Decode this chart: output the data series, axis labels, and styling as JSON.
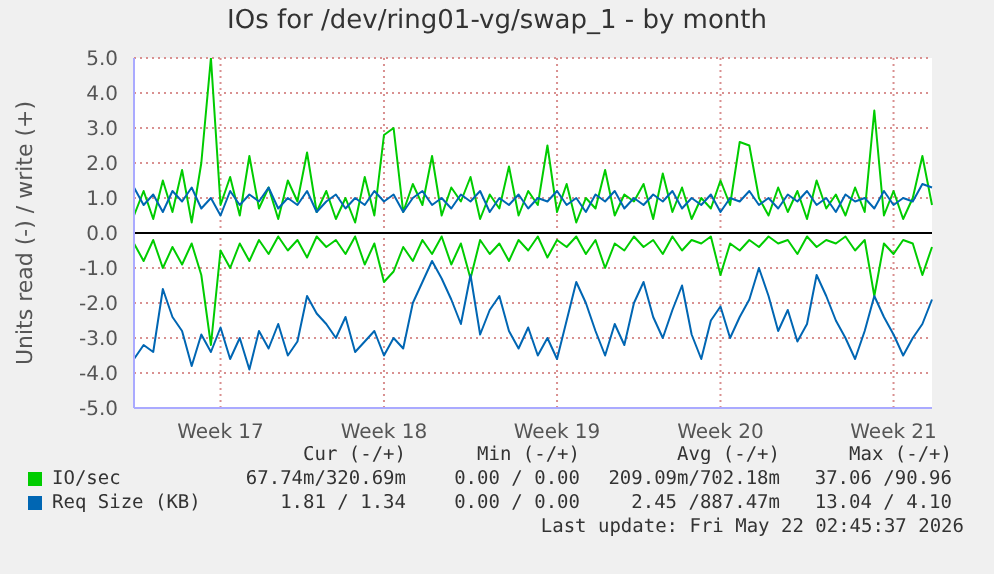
{
  "chart_data": {
    "type": "line",
    "title": "IOs for /dev/ring01-vg/swap_1 - by month",
    "ylabel": "Units read (-) / write (+)",
    "categories": [
      null,
      null,
      null,
      null,
      null,
      null,
      null,
      null,
      null,
      "Week 17",
      null,
      null,
      null,
      null,
      null,
      null,
      null,
      null,
      null,
      null,
      null,
      null,
      null,
      null,
      null,
      null,
      "Week 18",
      null,
      null,
      null,
      null,
      null,
      null,
      null,
      null,
      null,
      null,
      null,
      null,
      null,
      null,
      null,
      null,
      null,
      "Week 19",
      null,
      null,
      null,
      null,
      null,
      null,
      null,
      null,
      null,
      null,
      null,
      null,
      null,
      null,
      null,
      null,
      "Week 20",
      null,
      null,
      null,
      null,
      null,
      null,
      null,
      null,
      null,
      null,
      null,
      null,
      null,
      null,
      null,
      null,
      null,
      "Week 21",
      null,
      null,
      null,
      null
    ],
    "series": [
      {
        "color": "#00cc00",
        "values": [
          -0.3,
          -0.8,
          -0.2,
          -1.0,
          -0.4,
          -0.9,
          -0.3,
          -1.2,
          -3.2,
          -0.5,
          -1.0,
          -0.3,
          -0.8,
          -0.2,
          -0.6,
          -0.1,
          -0.5,
          -0.2,
          -0.7,
          -0.1,
          -0.4,
          -0.2,
          -0.6,
          -0.1,
          -0.9,
          -0.3,
          -1.4,
          -1.1,
          -0.4,
          -0.8,
          -0.2,
          -0.6,
          -0.1,
          -0.9,
          -0.3,
          -1.3,
          -0.2,
          -0.6,
          -0.3,
          -0.8,
          -0.2,
          -0.5,
          -0.1,
          -0.7,
          -0.2,
          -0.4,
          -0.1,
          -0.6,
          -0.2,
          -1.0,
          -0.3,
          -0.5,
          -0.1,
          -0.4,
          -0.2,
          -0.6,
          -0.1,
          -0.5,
          -0.2,
          -0.3,
          -0.1,
          -1.2,
          -0.3,
          -0.5,
          -0.2,
          -0.4,
          -0.1,
          -0.3,
          -0.2,
          -0.6,
          -0.1,
          -0.4,
          -0.2,
          -0.3,
          -0.1,
          -0.5,
          -0.2,
          -1.8,
          -0.3,
          -0.6,
          -0.2,
          -0.3,
          -1.2,
          -0.4
        ]
      },
      {
        "name": "IO/sec",
        "color": "#00cc00",
        "values": [
          0.5,
          1.2,
          0.4,
          1.5,
          0.6,
          1.8,
          0.3,
          2.0,
          5.0,
          0.8,
          1.6,
          0.5,
          2.2,
          0.7,
          1.3,
          0.4,
          1.5,
          0.9,
          2.3,
          0.6,
          1.2,
          0.4,
          1.0,
          0.3,
          1.6,
          0.5,
          2.8,
          3.0,
          0.6,
          1.4,
          0.8,
          2.2,
          0.5,
          1.3,
          0.9,
          1.6,
          0.4,
          1.1,
          0.7,
          1.9,
          0.5,
          1.2,
          0.8,
          2.5,
          0.6,
          1.4,
          0.3,
          1.0,
          0.7,
          1.8,
          0.5,
          1.1,
          0.9,
          1.4,
          0.4,
          1.7,
          0.6,
          1.3,
          0.4,
          1.0,
          0.7,
          1.5,
          0.8,
          2.6,
          2.5,
          1.0,
          0.5,
          1.3,
          0.6,
          1.2,
          0.4,
          1.5,
          0.7,
          1.1,
          0.5,
          1.3,
          0.6,
          3.5,
          0.5,
          1.2,
          0.4,
          1.0,
          2.2,
          0.8
        ]
      },
      {
        "color": "#0066b3",
        "values": [
          -3.6,
          -3.2,
          -3.4,
          -1.6,
          -2.4,
          -2.8,
          -3.8,
          -2.9,
          -3.4,
          -2.7,
          -3.6,
          -3.0,
          -3.9,
          -2.8,
          -3.3,
          -2.6,
          -3.5,
          -3.1,
          -1.8,
          -2.3,
          -2.6,
          -3.0,
          -2.4,
          -3.4,
          -3.1,
          -2.8,
          -3.5,
          -3.0,
          -3.3,
          -2.0,
          -1.4,
          -0.8,
          -1.3,
          -1.9,
          -2.6,
          -1.2,
          -2.9,
          -2.2,
          -1.8,
          -2.8,
          -3.3,
          -2.7,
          -3.5,
          -3.0,
          -3.6,
          -2.5,
          -1.4,
          -2.0,
          -2.8,
          -3.5,
          -2.6,
          -3.2,
          -2.0,
          -1.4,
          -2.4,
          -3.0,
          -2.2,
          -1.5,
          -2.9,
          -3.6,
          -2.5,
          -2.1,
          -3.0,
          -2.4,
          -1.9,
          -1.0,
          -1.8,
          -2.8,
          -2.2,
          -3.1,
          -2.6,
          -1.2,
          -1.8,
          -2.5,
          -3.0,
          -3.6,
          -2.8,
          -1.8,
          -2.4,
          -2.9,
          -3.5,
          -3.0,
          -2.6,
          -1.9
        ]
      },
      {
        "name": "Req Size (KB)",
        "color": "#0066b3",
        "values": [
          1.3,
          0.8,
          1.1,
          0.6,
          1.2,
          0.9,
          1.3,
          0.7,
          1.0,
          0.5,
          1.2,
          0.8,
          1.1,
          0.9,
          1.3,
          0.7,
          1.0,
          0.8,
          1.2,
          0.6,
          0.9,
          1.1,
          0.7,
          1.0,
          0.8,
          1.2,
          0.9,
          1.1,
          0.6,
          1.0,
          1.2,
          0.8,
          1.0,
          0.7,
          1.1,
          0.9,
          1.2,
          0.6,
          1.0,
          0.8,
          1.1,
          0.7,
          1.0,
          0.9,
          1.2,
          0.8,
          1.0,
          0.6,
          1.1,
          0.9,
          1.2,
          0.7,
          1.0,
          0.8,
          1.1,
          0.9,
          1.2,
          0.7,
          1.0,
          0.8,
          1.1,
          0.6,
          1.0,
          0.9,
          1.2,
          0.8,
          1.0,
          0.7,
          1.1,
          0.9,
          1.2,
          0.8,
          1.0,
          0.6,
          1.1,
          0.9,
          1.0,
          0.7,
          1.2,
          0.8,
          1.0,
          0.9,
          1.4,
          1.3
        ]
      }
    ],
    "ylim": [
      -5,
      5
    ],
    "yticks": [
      {
        "value": -5,
        "label": "-5.0"
      },
      {
        "value": -4,
        "label": "-4.0"
      },
      {
        "value": -3,
        "label": "-3.0"
      },
      {
        "value": -2,
        "label": "-2.0"
      },
      {
        "value": -1,
        "label": "-1.0"
      },
      {
        "value": 0,
        "label": "0.0"
      },
      {
        "value": 1,
        "label": "1.0"
      },
      {
        "value": 2,
        "label": "2.0"
      },
      {
        "value": 3,
        "label": "3.0"
      },
      {
        "value": 4,
        "label": "4.0"
      },
      {
        "value": 5,
        "label": "5.0"
      }
    ],
    "ref_lines": [
      {
        "axis": "y",
        "value": 0,
        "color": "#000000"
      }
    ],
    "grid": true,
    "legend": "bottom",
    "line_style": "solid",
    "annotations": [
      "Cur (-/+)",
      "Min (-/+)",
      "Avg (-/+)",
      "Max (-/+)",
      "67.74m/320.69m",
      "0.00 / 0.00",
      "209.09m/702.18m",
      "37.06 /90.96",
      "1.81 / 1.34",
      "0.00 / 0.00",
      "2.45 /887.47m",
      "13.04 / 4.10",
      "Last update: Fri May 22 02:45:37 2026"
    ]
  }
}
